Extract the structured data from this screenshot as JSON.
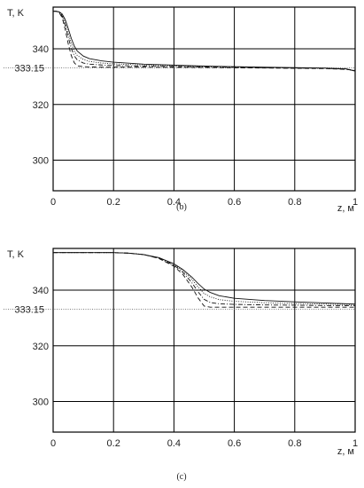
{
  "chart_data": [
    {
      "type": "line",
      "caption": "(b)",
      "ylabel": "T, K",
      "xlabel": "z, м",
      "xlim": [
        0,
        1
      ],
      "ylim": [
        289,
        355
      ],
      "x_ticks": [
        "0",
        "0.2",
        "0.4",
        "0.6",
        "0.8",
        "1"
      ],
      "y_ticks": [
        "300",
        "320",
        "340"
      ],
      "reference": {
        "label": "333.15",
        "value": 333.15
      },
      "grid": true,
      "series": [
        {
          "style": "solid",
          "x": [
            0,
            0.01,
            0.02,
            0.03,
            0.04,
            0.05,
            0.06,
            0.07,
            0.08,
            0.1,
            0.12,
            0.16,
            0.2,
            0.3,
            0.5,
            0.7,
            0.9,
            0.97,
            1.0
          ],
          "y": [
            353.5,
            353.5,
            353.3,
            352.5,
            350.5,
            347.3,
            343.8,
            341.0,
            339.2,
            337.4,
            336.5,
            335.7,
            335.2,
            334.5,
            333.8,
            333.4,
            333.1,
            332.8,
            332.0
          ]
        },
        {
          "style": "dotted",
          "x": [
            0,
            0.01,
            0.02,
            0.03,
            0.04,
            0.05,
            0.06,
            0.07,
            0.08,
            0.1,
            0.12,
            0.16,
            0.2,
            0.3,
            0.5,
            0.7,
            0.9,
            0.97,
            1.0
          ],
          "y": [
            353.5,
            353.5,
            353.2,
            352.2,
            349.5,
            345.8,
            342.0,
            339.2,
            337.6,
            336.2,
            335.5,
            334.9,
            334.6,
            334.2,
            333.7,
            333.3,
            333.0,
            332.8,
            332.1
          ]
        },
        {
          "style": "dashdot",
          "x": [
            0,
            0.01,
            0.02,
            0.03,
            0.04,
            0.05,
            0.06,
            0.07,
            0.08,
            0.1,
            0.12,
            0.16,
            0.2,
            0.3,
            0.5,
            0.7,
            0.9,
            0.97,
            1.0
          ],
          "y": [
            353.5,
            353.5,
            353.1,
            351.8,
            348.5,
            344.2,
            340.2,
            337.5,
            336.0,
            334.9,
            334.5,
            334.2,
            334.0,
            333.8,
            333.5,
            333.2,
            333.0,
            332.7,
            332.2
          ]
        },
        {
          "style": "dashed",
          "x": [
            0,
            0.01,
            0.02,
            0.03,
            0.04,
            0.05,
            0.06,
            0.07,
            0.08,
            0.1,
            0.12,
            0.16,
            0.2,
            0.3,
            0.5,
            0.7,
            0.9,
            0.97,
            1.0
          ],
          "y": [
            353.5,
            353.5,
            353.0,
            351.2,
            347.0,
            341.8,
            337.6,
            335.0,
            333.9,
            333.6,
            333.5,
            333.4,
            333.4,
            333.4,
            333.3,
            333.1,
            332.9,
            332.6,
            332.3
          ]
        }
      ]
    },
    {
      "type": "line",
      "caption": "(c)",
      "ylabel": "T, K",
      "xlabel": "z, м",
      "xlim": [
        0,
        1
      ],
      "ylim": [
        289,
        355
      ],
      "x_ticks": [
        "0",
        "0.2",
        "0.4",
        "0.6",
        "0.8",
        "1"
      ],
      "y_ticks": [
        "300",
        "320",
        "340"
      ],
      "reference": {
        "label": "333.15",
        "value": 333.15
      },
      "grid": true,
      "series": [
        {
          "style": "solid",
          "x": [
            0,
            0.1,
            0.2,
            0.25,
            0.3,
            0.35,
            0.4,
            0.43,
            0.46,
            0.48,
            0.5,
            0.52,
            0.55,
            0.6,
            0.7,
            0.8,
            0.9,
            1.0
          ],
          "y": [
            353.5,
            353.5,
            353.5,
            353.3,
            352.8,
            351.7,
            349.5,
            347.4,
            344.6,
            342.4,
            340.4,
            339.2,
            338.0,
            337.1,
            336.3,
            335.8,
            335.4,
            335.0
          ]
        },
        {
          "style": "dotted",
          "x": [
            0,
            0.1,
            0.2,
            0.25,
            0.3,
            0.35,
            0.4,
            0.43,
            0.46,
            0.48,
            0.5,
            0.52,
            0.55,
            0.6,
            0.7,
            0.8,
            0.9,
            1.0
          ],
          "y": [
            353.5,
            353.5,
            353.5,
            353.3,
            352.8,
            351.6,
            349.3,
            347.0,
            343.8,
            341.2,
            338.8,
            337.6,
            336.6,
            336.0,
            335.5,
            335.2,
            335.0,
            334.8
          ]
        },
        {
          "style": "dashdot",
          "x": [
            0,
            0.1,
            0.2,
            0.25,
            0.3,
            0.35,
            0.4,
            0.43,
            0.46,
            0.48,
            0.5,
            0.52,
            0.55,
            0.6,
            0.7,
            0.8,
            0.9,
            1.0
          ],
          "y": [
            353.5,
            353.5,
            353.5,
            353.3,
            352.8,
            351.5,
            349.0,
            346.4,
            342.6,
            339.4,
            336.7,
            335.6,
            335.1,
            334.9,
            334.7,
            334.6,
            334.5,
            334.4
          ]
        },
        {
          "style": "dashed",
          "x": [
            0,
            0.1,
            0.2,
            0.25,
            0.3,
            0.35,
            0.4,
            0.43,
            0.46,
            0.48,
            0.5,
            0.52,
            0.55,
            0.6,
            0.7,
            0.8,
            0.9,
            1.0
          ],
          "y": [
            353.5,
            353.5,
            353.5,
            353.3,
            352.8,
            351.4,
            348.6,
            345.6,
            341.0,
            337.2,
            334.3,
            333.9,
            333.9,
            333.9,
            333.9,
            333.9,
            333.9,
            333.9
          ]
        }
      ]
    }
  ]
}
